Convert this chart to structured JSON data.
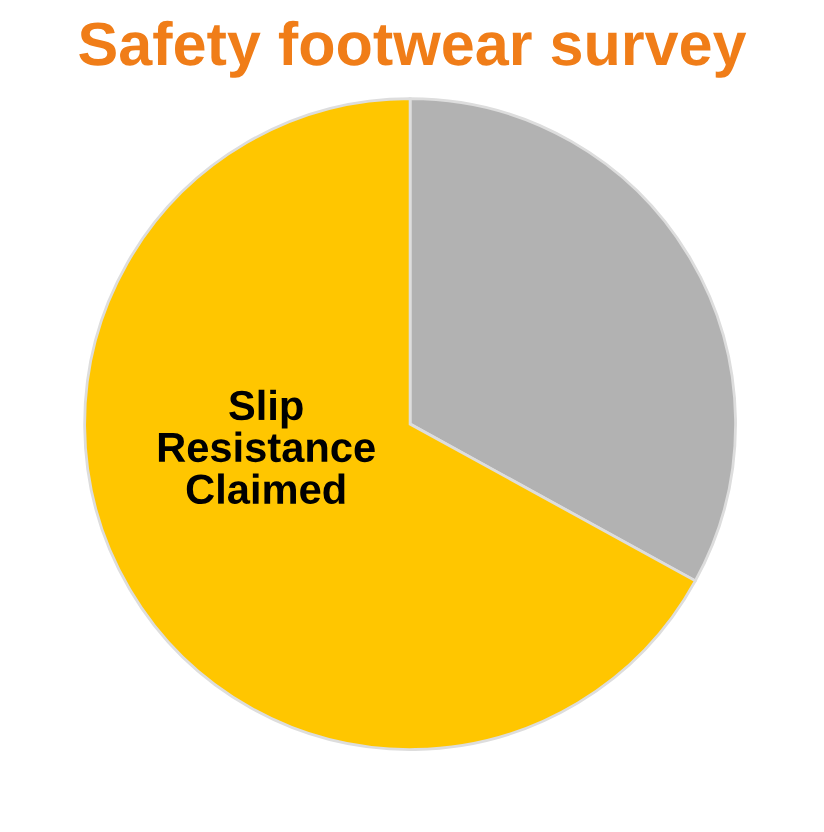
{
  "chart_data": {
    "type": "pie",
    "title": "Safety footwear survey",
    "categories": [
      null,
      "Slip\nResistance\nClaimed"
    ],
    "values": [
      33,
      67
    ],
    "colors": [
      "#b2b2b2",
      "#ffc600"
    ],
    "legend": false
  }
}
